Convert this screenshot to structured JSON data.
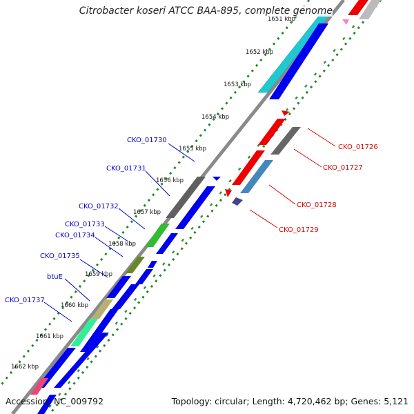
{
  "title": "Citrobacter koseri ATCC BAA-895, complete genome",
  "accession": "Accession: NC_009792",
  "summary": "Topology: circular; Length: 4,720,462 bp; Genes: 5,121",
  "colors": {
    "forward_label": "#0000cc",
    "reverse_label": "#dd0000",
    "backbone": "#888888",
    "dots": "#228822"
  },
  "ticks": [
    "1651 kbp",
    "1652 kbp",
    "1653 kbp",
    "1654 kbp",
    "1655 kbp",
    "1656 kbp",
    "1657 kbp",
    "1658 kbp",
    "1659 kbp",
    "1660 kbp",
    "1661 kbp",
    "1662 kbp"
  ],
  "forward_labels": [
    "CKO_01730",
    "CKO_01731",
    "CKO_01732",
    "CKO_01733",
    "CKO_01734",
    "CKO_01735",
    "btuE",
    "CKO_01737"
  ],
  "reverse_labels": [
    "CKO_01726",
    "CKO_01727",
    "CKO_01728",
    "CKO_01729"
  ]
}
